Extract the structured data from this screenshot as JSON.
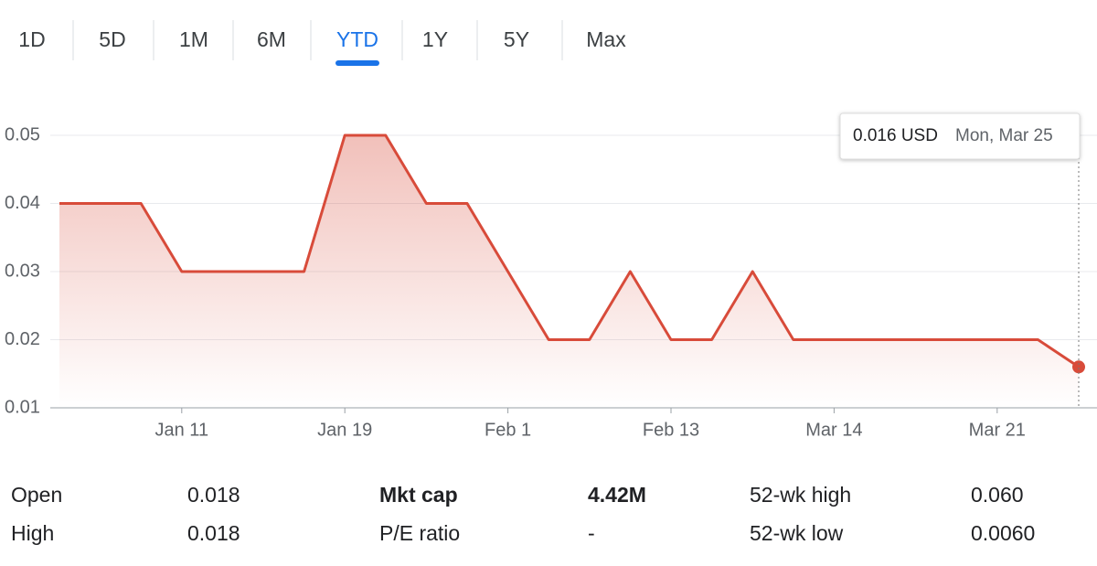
{
  "tabs": {
    "items": [
      "1D",
      "5D",
      "1M",
      "6M",
      "YTD",
      "1Y",
      "5Y",
      "Max"
    ],
    "active": 4
  },
  "tooltip": {
    "price": "0.016 USD",
    "date": "Mon, Mar 25"
  },
  "chart_data": {
    "type": "line",
    "color": "#d84b3a",
    "categories": [
      null,
      null,
      null,
      "Jan 11",
      null,
      null,
      null,
      "Jan 19",
      null,
      null,
      null,
      "Feb 1",
      null,
      null,
      null,
      "Feb 13",
      null,
      null,
      null,
      "Mar 14",
      null,
      null,
      null,
      "Mar 21",
      null,
      null
    ],
    "values": [
      0.04,
      0.04,
      0.04,
      0.03,
      0.03,
      0.03,
      0.03,
      0.05,
      0.05,
      0.04,
      0.04,
      0.03,
      0.02,
      0.02,
      0.03,
      0.02,
      0.02,
      0.03,
      0.02,
      0.02,
      0.02,
      0.02,
      0.02,
      0.02,
      0.02,
      0.016
    ],
    "ylim": [
      0.01,
      0.05
    ],
    "yticks": [
      0.01,
      0.02,
      0.03,
      0.04,
      0.05
    ],
    "grid": true
  },
  "stats": {
    "rows": [
      [
        "Open",
        "0.018"
      ],
      [
        "High",
        "0.018"
      ],
      [
        "Mkt cap",
        "4.42M"
      ],
      [
        "P/E ratio",
        "-"
      ],
      [
        "52-wk high",
        "0.060"
      ],
      [
        "52-wk low",
        "0.0060"
      ]
    ]
  }
}
